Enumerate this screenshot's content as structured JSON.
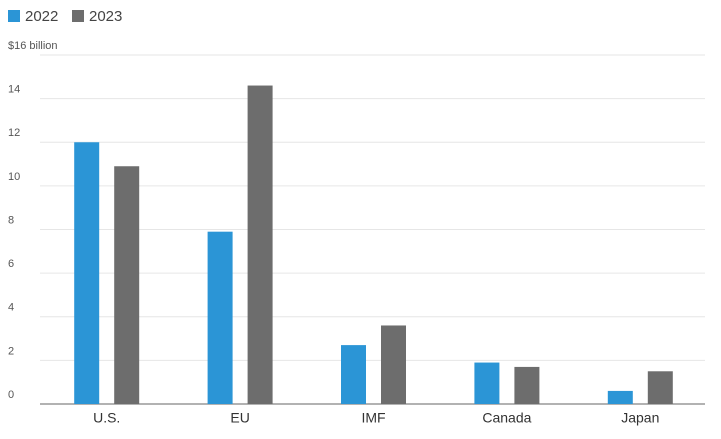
{
  "chart_data": {
    "type": "bar",
    "categories": [
      "U.S.",
      "EU",
      "IMF",
      "Canada",
      "Japan"
    ],
    "series": [
      {
        "name": "2022",
        "color": "#2b95d6",
        "values": [
          12,
          7.9,
          2.7,
          1.9,
          0.6
        ]
      },
      {
        "name": "2023",
        "color": "#6d6d6d",
        "values": [
          10.9,
          14.6,
          3.6,
          1.7,
          1.5
        ]
      }
    ],
    "ylim": [
      0,
      16
    ],
    "yticks": [
      0,
      2,
      4,
      6,
      8,
      10,
      12,
      14,
      {
        "value": 16,
        "label": "$16 billion"
      }
    ],
    "grid": true
  }
}
